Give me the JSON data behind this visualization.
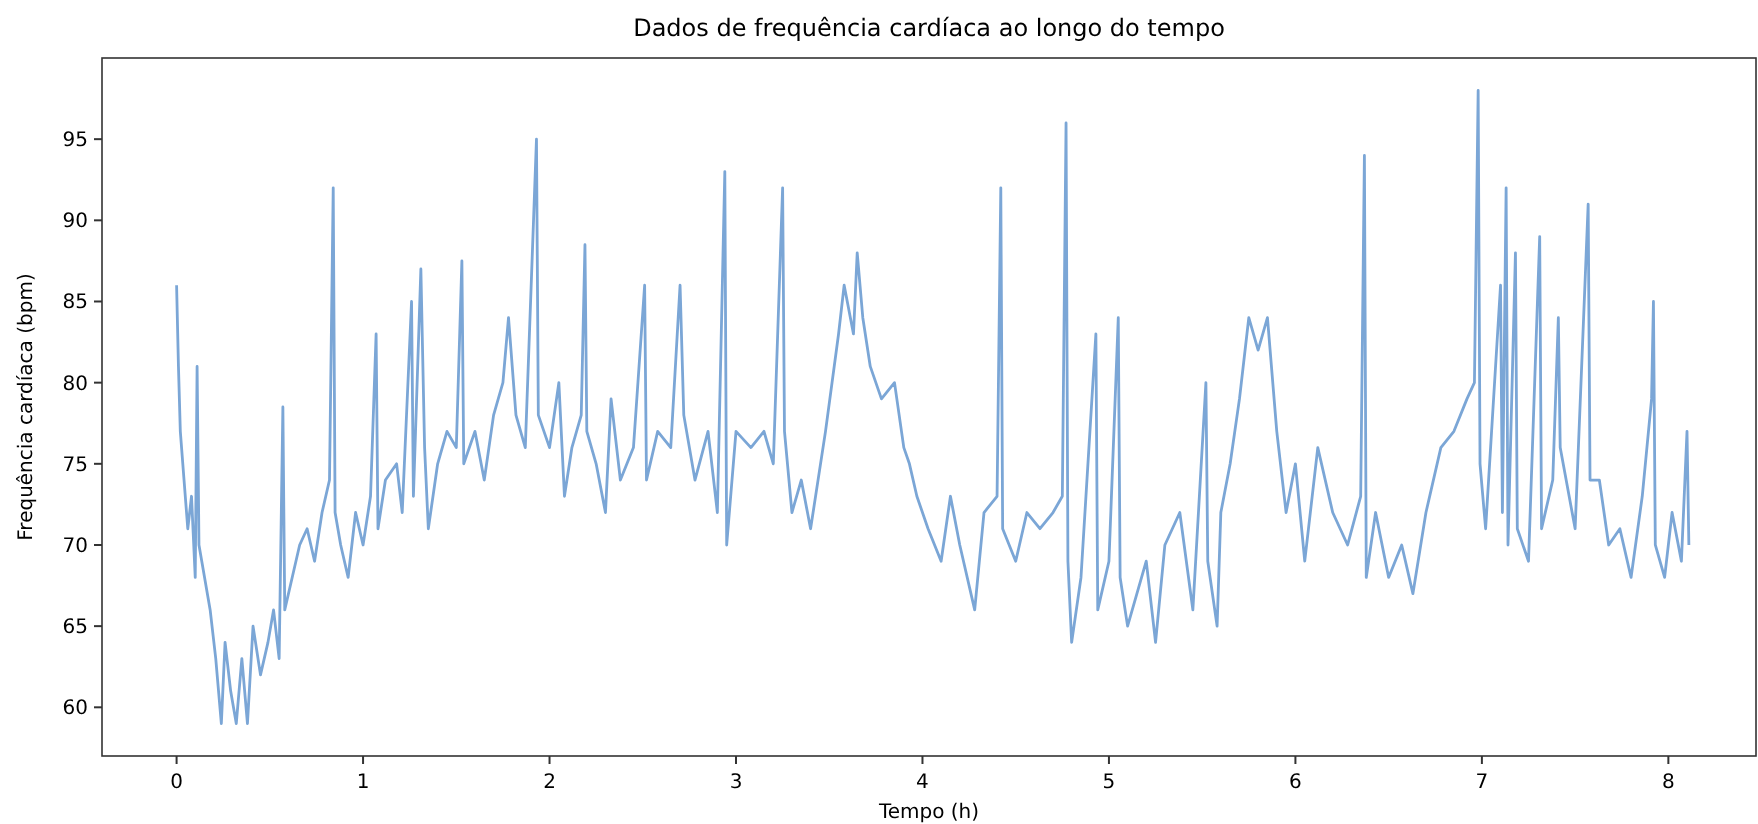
{
  "chart_data": {
    "type": "line",
    "title": "Dados de frequência cardíaca ao longo do tempo",
    "xlabel": "Tempo (h)",
    "ylabel": "Frequência cardíaca (bpm)",
    "x": [
      0,
      0.01,
      0.02,
      0.04,
      0.06,
      0.08,
      0.1,
      0.11,
      0.12,
      0.15,
      0.18,
      0.21,
      0.24,
      0.26,
      0.29,
      0.32,
      0.35,
      0.38,
      0.41,
      0.45,
      0.49,
      0.52,
      0.55,
      0.57,
      0.58,
      0.62,
      0.66,
      0.7,
      0.74,
      0.78,
      0.82,
      0.84,
      0.85,
      0.88,
      0.92,
      0.96,
      1.0,
      1.04,
      1.07,
      1.08,
      1.12,
      1.18,
      1.21,
      1.26,
      1.27,
      1.31,
      1.33,
      1.35,
      1.4,
      1.45,
      1.5,
      1.53,
      1.54,
      1.6,
      1.65,
      1.7,
      1.75,
      1.78,
      1.82,
      1.87,
      1.93,
      1.94,
      2.0,
      2.05,
      2.08,
      2.12,
      2.17,
      2.19,
      2.2,
      2.25,
      2.3,
      2.33,
      2.38,
      2.45,
      2.51,
      2.52,
      2.58,
      2.65,
      2.7,
      2.72,
      2.78,
      2.85,
      2.9,
      2.94,
      2.95,
      3.0,
      3.08,
      3.15,
      3.2,
      3.25,
      3.26,
      3.3,
      3.35,
      3.4,
      3.48,
      3.55,
      3.58,
      3.63,
      3.65,
      3.68,
      3.72,
      3.78,
      3.85,
      3.9,
      3.93,
      3.97,
      4.03,
      4.1,
      4.15,
      4.2,
      4.28,
      4.33,
      4.4,
      4.42,
      4.43,
      4.5,
      4.56,
      4.63,
      4.7,
      4.75,
      4.77,
      4.78,
      4.8,
      4.85,
      4.93,
      4.94,
      5.0,
      5.05,
      5.06,
      5.1,
      5.2,
      5.25,
      5.3,
      5.38,
      5.45,
      5.52,
      5.53,
      5.58,
      5.6,
      5.65,
      5.7,
      5.75,
      5.8,
      5.85,
      5.9,
      5.95,
      6.0,
      6.05,
      6.12,
      6.2,
      6.28,
      6.35,
      6.37,
      6.38,
      6.43,
      6.5,
      6.57,
      6.63,
      6.7,
      6.78,
      6.85,
      6.92,
      6.96,
      6.98,
      6.99,
      7.02,
      7.1,
      7.11,
      7.13,
      7.14,
      7.18,
      7.19,
      7.25,
      7.31,
      7.32,
      7.38,
      7.41,
      7.42,
      7.5,
      7.57,
      7.58,
      7.63,
      7.68,
      7.74,
      7.8,
      7.86,
      7.91,
      7.92,
      7.93,
      7.98,
      8.02,
      8.07,
      8.1,
      8.11
    ],
    "series": [
      {
        "color": "#7ba6d6",
        "values": [
          86,
          81,
          77,
          74,
          71,
          73,
          68,
          81,
          70,
          68,
          66,
          63,
          59,
          64,
          61,
          59,
          63,
          59,
          65,
          62,
          64,
          66,
          63,
          78.5,
          66,
          68,
          70,
          71,
          69,
          72,
          74,
          92,
          72,
          70,
          68,
          72,
          70,
          73,
          83,
          71,
          74,
          75,
          72,
          85,
          73,
          87,
          76,
          71,
          75,
          77,
          76,
          87.5,
          75,
          77,
          74,
          78,
          80,
          84,
          78,
          76,
          95,
          78,
          76,
          80,
          73,
          76,
          78,
          88.5,
          77,
          75,
          72,
          79,
          74,
          76,
          86,
          74,
          77,
          76,
          86,
          78,
          74,
          77,
          72,
          93,
          70,
          77,
          76,
          77,
          75,
          92,
          77,
          72,
          74,
          71,
          77,
          83,
          86,
          83,
          88,
          84,
          81,
          79,
          80,
          76,
          75,
          73,
          71,
          69,
          73,
          70,
          66,
          72,
          73,
          92,
          71,
          69,
          72,
          71,
          72,
          73,
          96,
          69,
          64,
          68,
          83,
          66,
          69,
          84,
          68,
          65,
          69,
          64,
          70,
          72,
          66,
          80,
          69,
          65,
          72,
          75,
          79,
          84,
          82,
          84,
          77,
          72,
          75,
          69,
          76,
          72,
          70,
          73,
          94,
          68,
          72,
          68,
          70,
          67,
          72,
          76,
          77,
          79,
          80,
          98,
          75,
          71,
          86,
          72,
          92,
          70,
          88,
          71,
          69,
          89,
          71,
          74,
          84,
          76,
          71,
          91,
          74,
          74,
          70,
          71,
          68,
          73,
          79,
          85,
          70,
          68,
          72,
          69,
          77,
          70
        ]
      }
    ],
    "xlim": [
      -0.4,
      8.47
    ],
    "ylim": [
      57,
      100
    ],
    "xticks": [
      0,
      1,
      2,
      3,
      4,
      5,
      6,
      7,
      8
    ],
    "yticks": [
      60,
      65,
      70,
      75,
      80,
      85,
      90,
      95
    ],
    "grid": false,
    "marker": "none",
    "line_style": "solid"
  }
}
